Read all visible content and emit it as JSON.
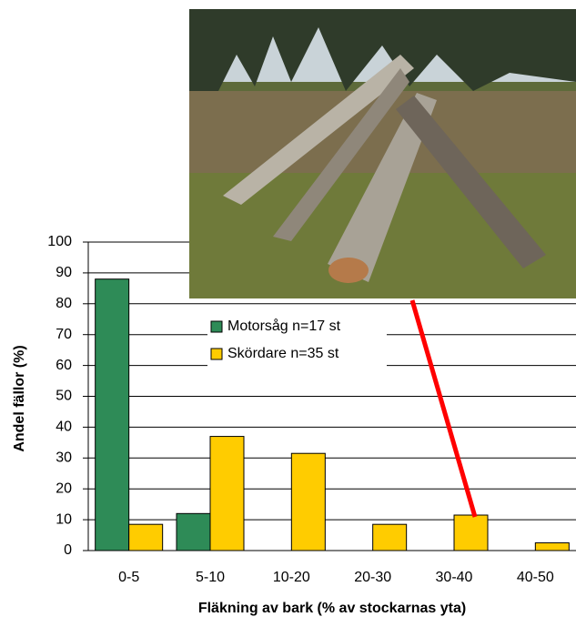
{
  "chart_data": {
    "type": "bar",
    "x_label": "Fläkning av bark (% av stockarnas yta)",
    "y_label": "Andel fällor (%)",
    "categories": [
      "0-5",
      "5-10",
      "10-20",
      "20-30",
      "30-40",
      "40-50"
    ],
    "series": [
      {
        "name": "Motorsåg n=17 st",
        "color": "#2e8b57",
        "values": [
          88,
          12,
          0,
          0,
          0,
          0
        ]
      },
      {
        "name": "Skördare n=35 st",
        "color": "#ffcc00",
        "values": [
          8.5,
          37,
          31.5,
          8.5,
          11.5,
          2.5
        ]
      }
    ],
    "ylim": [
      0,
      100
    ],
    "yticks": [
      0,
      10,
      20,
      30,
      40,
      50,
      60,
      70,
      80,
      90,
      100
    ],
    "grid": true
  }
}
